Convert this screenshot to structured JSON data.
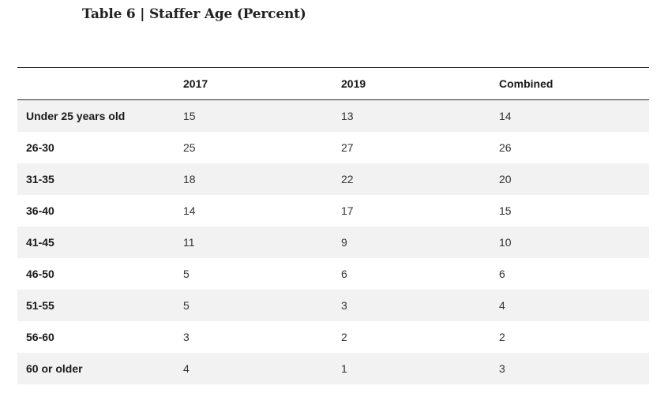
{
  "title": "Table 6 | Staffer Age (Percent)",
  "table": {
    "headers": [
      "",
      "2017",
      "2019",
      "Combined"
    ],
    "rows": [
      {
        "label": "Under 25 years old",
        "v2017": "15",
        "v2019": "13",
        "combined": "14"
      },
      {
        "label": "26-30",
        "v2017": "25",
        "v2019": "27",
        "combined": "26"
      },
      {
        "label": "31-35",
        "v2017": "18",
        "v2019": "22",
        "combined": "20"
      },
      {
        "label": "36-40",
        "v2017": "14",
        "v2019": "17",
        "combined": "15"
      },
      {
        "label": "41-45",
        "v2017": "11",
        "v2019": "9",
        "combined": "10"
      },
      {
        "label": "46-50",
        "v2017": "5",
        "v2019": "6",
        "combined": "6"
      },
      {
        "label": "51-55",
        "v2017": "5",
        "v2019": "3",
        "combined": "4"
      },
      {
        "label": "56-60",
        "v2017": "3",
        "v2019": "2",
        "combined": "2"
      },
      {
        "label": "60 or older",
        "v2017": "4",
        "v2019": "1",
        "combined": "3"
      }
    ]
  }
}
